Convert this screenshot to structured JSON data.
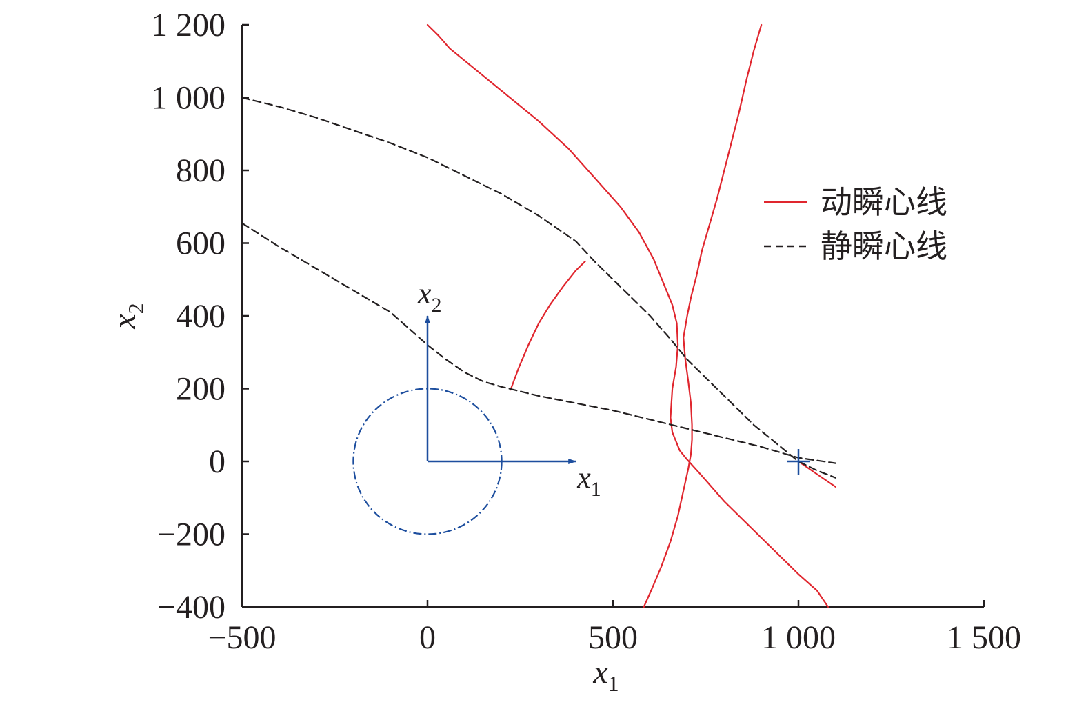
{
  "chart_data": {
    "type": "line",
    "title": "",
    "xlabel": {
      "base": "x",
      "sub": "1"
    },
    "ylabel": {
      "base": "x",
      "sub": "2"
    },
    "xlim": [
      -500,
      1500
    ],
    "ylim": [
      -400,
      1200
    ],
    "x_ticks": [
      {
        "value": -500,
        "label": "−500"
      },
      {
        "value": 0,
        "label": "0"
      },
      {
        "value": 500,
        "label": "500"
      },
      {
        "value": 1000,
        "label": "1 000"
      },
      {
        "value": 1500,
        "label": "1 500"
      }
    ],
    "y_ticks": [
      {
        "value": -400,
        "label": "−400"
      },
      {
        "value": -200,
        "label": "−200"
      },
      {
        "value": 0,
        "label": "0"
      },
      {
        "value": 200,
        "label": "200"
      },
      {
        "value": 400,
        "label": "400"
      },
      {
        "value": 600,
        "label": "600"
      },
      {
        "value": 800,
        "label": "800"
      },
      {
        "value": 1000,
        "label": "1 000"
      },
      {
        "value": 1200,
        "label": "1 200"
      }
    ],
    "grid": false,
    "legend_position": "right",
    "legend": [
      {
        "label": "动瞬心线",
        "style": "solid",
        "color": "#e0262e"
      },
      {
        "label": "静瞬心线",
        "style": "dashed",
        "color": "#231f20"
      }
    ],
    "series": [
      {
        "group": "动瞬心线",
        "color": "#e0262e",
        "style": "solid",
        "points": [
          [
            0,
            1200
          ],
          [
            30,
            1170
          ],
          [
            60,
            1135
          ],
          [
            120,
            1085
          ],
          [
            180,
            1035
          ],
          [
            240,
            985
          ],
          [
            300,
            935
          ],
          [
            380,
            860
          ],
          [
            450,
            780
          ],
          [
            520,
            700
          ],
          [
            570,
            630
          ],
          [
            610,
            555
          ],
          [
            640,
            480
          ],
          [
            660,
            430
          ],
          [
            672,
            380
          ],
          [
            675,
            320
          ],
          [
            670,
            260
          ],
          [
            660,
            200
          ],
          [
            655,
            120
          ],
          [
            660,
            80
          ],
          [
            680,
            30
          ],
          [
            700,
            5
          ],
          [
            740,
            -40
          ],
          [
            800,
            -110
          ],
          [
            870,
            -180
          ],
          [
            940,
            -250
          ],
          [
            1000,
            -310
          ],
          [
            1050,
            -355
          ],
          [
            1080,
            -400
          ]
        ]
      },
      {
        "group": "动瞬心线",
        "color": "#e0262e",
        "style": "solid",
        "points": [
          [
            900,
            1200
          ],
          [
            880,
            1130
          ],
          [
            860,
            1050
          ],
          [
            840,
            960
          ],
          [
            820,
            880
          ],
          [
            800,
            800
          ],
          [
            780,
            720
          ],
          [
            760,
            650
          ],
          [
            740,
            580
          ],
          [
            725,
            510
          ],
          [
            710,
            450
          ],
          [
            700,
            400
          ],
          [
            690,
            340
          ],
          [
            695,
            280
          ],
          [
            703,
            220
          ],
          [
            710,
            160
          ],
          [
            713,
            100
          ],
          [
            713,
            60
          ],
          [
            710,
            20
          ],
          [
            703,
            -20
          ],
          [
            690,
            -80
          ],
          [
            675,
            -150
          ],
          [
            655,
            -220
          ],
          [
            630,
            -290
          ],
          [
            605,
            -350
          ],
          [
            583,
            -400
          ]
        ]
      },
      {
        "group": "动瞬心线",
        "color": "#e0262e",
        "style": "solid",
        "points": [
          [
            224,
            197
          ],
          [
            245,
            255
          ],
          [
            272,
            320
          ],
          [
            300,
            380
          ],
          [
            330,
            430
          ],
          [
            365,
            480
          ],
          [
            400,
            525
          ],
          [
            425,
            550
          ]
        ]
      },
      {
        "group": "动瞬心线",
        "color": "#e0262e",
        "style": "solid",
        "points": [
          [
            1000,
            0
          ],
          [
            1050,
            -35
          ],
          [
            1100,
            -70
          ]
        ]
      },
      {
        "group": "静瞬心线",
        "color": "#231f20",
        "style": "dashed",
        "points": [
          [
            -500,
            1000
          ],
          [
            -400,
            975
          ],
          [
            -300,
            945
          ],
          [
            -200,
            910
          ],
          [
            -100,
            875
          ],
          [
            0,
            835
          ],
          [
            100,
            785
          ],
          [
            200,
            735
          ],
          [
            300,
            675
          ],
          [
            400,
            605
          ],
          [
            450,
            550
          ],
          [
            520,
            480
          ],
          [
            600,
            400
          ],
          [
            660,
            330
          ],
          [
            700,
            280
          ],
          [
            760,
            220
          ],
          [
            820,
            160
          ],
          [
            880,
            100
          ],
          [
            940,
            50
          ],
          [
            1000,
            0
          ],
          [
            1050,
            -25
          ],
          [
            1100,
            -45
          ]
        ]
      },
      {
        "group": "静瞬心线",
        "color": "#231f20",
        "style": "dashed",
        "points": [
          [
            -500,
            655
          ],
          [
            -400,
            590
          ],
          [
            -300,
            530
          ],
          [
            -200,
            470
          ],
          [
            -100,
            410
          ],
          [
            0,
            320
          ],
          [
            50,
            280
          ],
          [
            100,
            245
          ],
          [
            150,
            220
          ],
          [
            200,
            205
          ],
          [
            300,
            180
          ],
          [
            400,
            160
          ],
          [
            500,
            140
          ],
          [
            600,
            115
          ],
          [
            700,
            90
          ],
          [
            800,
            65
          ],
          [
            900,
            40
          ],
          [
            1000,
            10
          ],
          [
            1100,
            -5
          ]
        ]
      }
    ],
    "inset": {
      "axis_color": "#1d4e9e",
      "x_arrow_to": 400,
      "y_arrow_to": 400,
      "circle_radius": 200,
      "x_label": {
        "base": "x",
        "sub": "1"
      },
      "y_label": {
        "base": "x",
        "sub": "2"
      },
      "marker": {
        "x": 1000,
        "y": 0
      }
    }
  }
}
